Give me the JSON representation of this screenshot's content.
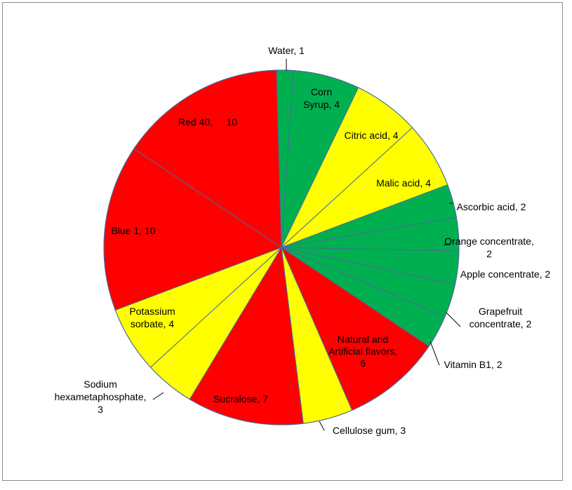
{
  "chart_data": {
    "type": "pie",
    "title": "",
    "slices": [
      {
        "label": "Water",
        "value": 1,
        "color": "#00b050",
        "text": [
          "Water, 1"
        ]
      },
      {
        "label": "Corn Syrup",
        "value": 4,
        "color": "#00b050",
        "text": [
          "Corn",
          "Syrup, 4"
        ]
      },
      {
        "label": "Citric acid",
        "value": 4,
        "color": "#ffff00",
        "text": [
          "Citric acid, 4"
        ]
      },
      {
        "label": "Malic acid",
        "value": 4,
        "color": "#ffff00",
        "text": [
          "Malic acid, 4"
        ]
      },
      {
        "label": "Ascorbic acid",
        "value": 2,
        "color": "#00b050",
        "text": [
          "Ascorbic acid, 2"
        ]
      },
      {
        "label": "Orange concentrate",
        "value": 2,
        "color": "#00b050",
        "text": [
          "Orange concentrate,",
          "2"
        ]
      },
      {
        "label": "Apple concentrate",
        "value": 2,
        "color": "#00b050",
        "text": [
          "Apple concentrate, 2"
        ]
      },
      {
        "label": "Grapefruit concentrate",
        "value": 2,
        "color": "#00b050",
        "text": [
          "Grapefruit",
          "concentrate, 2"
        ]
      },
      {
        "label": "Vitamin B1",
        "value": 2,
        "color": "#00b050",
        "text": [
          "Vitamin B1, 2"
        ]
      },
      {
        "label": "Natural and Artificial flavors",
        "value": 6,
        "color": "#ff0000",
        "text": [
          "Natural and",
          "Artificial flavors,",
          "6"
        ]
      },
      {
        "label": "Cellulose gum",
        "value": 3,
        "color": "#ffff00",
        "text": [
          "Cellulose gum, 3"
        ]
      },
      {
        "label": "Sucralose",
        "value": 7,
        "color": "#ff0000",
        "text": [
          "Sucralose, 7"
        ]
      },
      {
        "label": "Sodium hexametaphosphate",
        "value": 3,
        "color": "#ffff00",
        "text": [
          "Sodium",
          "hexametaphosphate,",
          "3"
        ]
      },
      {
        "label": "Potassium sorbate",
        "value": 4,
        "color": "#ffff00",
        "text": [
          "Potassium",
          "sorbate, 4"
        ]
      },
      {
        "label": "Blue 1",
        "value": 10,
        "color": "#ff0000",
        "text": [
          "Blue 1, 10"
        ]
      },
      {
        "label": "Red 40",
        "value": 10,
        "color": "#ff0000",
        "text": [
          "Red 40,     10"
        ]
      }
    ]
  }
}
